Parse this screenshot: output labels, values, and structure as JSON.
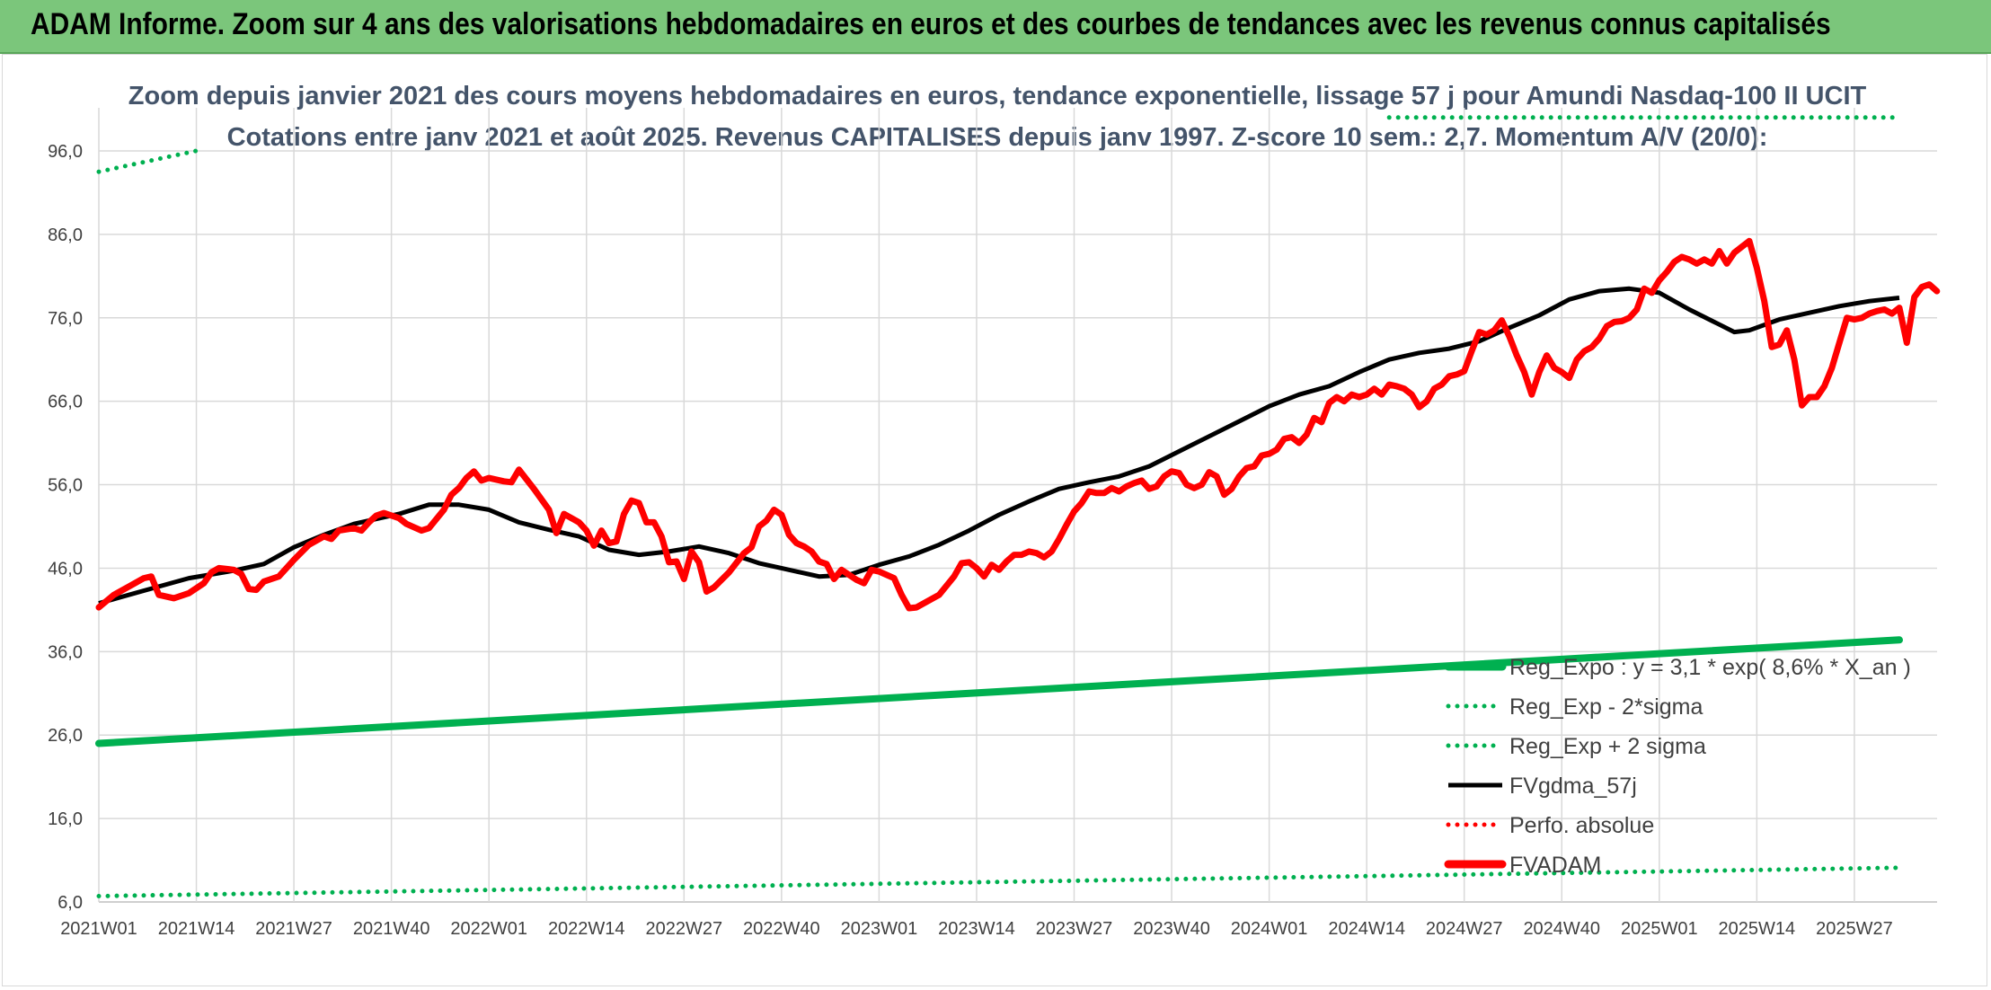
{
  "banner": {
    "title": "ADAM Informe. Zoom sur 4 ans des valorisations hebdomadaires en euros et des courbes de tendances avec les revenus connus capitalisés"
  },
  "colors": {
    "banner_bg": "#7bc67b",
    "reg_green": "#00b050",
    "fvgdma": "#000000",
    "fvadam": "#ff0000",
    "perfo": "#ff0000",
    "grid": "#d9d9d9",
    "title_text": "#44546a"
  },
  "chart_data": {
    "type": "line",
    "title": "Zoom depuis janvier 2021 des cours moyens hebdomadaires en euros, tendance exponentielle, lissage 57 j pour Amundi Nasdaq-100 II UCIT",
    "subtitle": "Cotations entre janv 2021 et août 2025. Revenus CAPITALISES depuis janv 1997. Z-score 10 sem.: 2,7. Momentum A/V (20/0):",
    "x_categories": [
      "2021W01",
      "2021W14",
      "2021W27",
      "2021W40",
      "2022W01",
      "2022W14",
      "2022W27",
      "2022W40",
      "2023W01",
      "2023W14",
      "2023W27",
      "2023W40",
      "2024W01",
      "2024W14",
      "2024W27",
      "2024W40",
      "2025W01",
      "2025W14",
      "2025W27"
    ],
    "x_range_weeks": [
      0,
      240
    ],
    "y_ticks": [
      "6,0",
      "16,0",
      "26,0",
      "36,0",
      "46,0",
      "56,0",
      "66,0",
      "76,0",
      "86,0",
      "96,0"
    ],
    "ylim": [
      6,
      100
    ],
    "grid": true,
    "legend_position": "bottom-right",
    "series": [
      {
        "name": "Reg_Expo : y = 3,1 * exp( 8,6% *  X_an )",
        "style": "thick-solid",
        "color": "#00b050",
        "points": [
          [
            0,
            25.0
          ],
          [
            240,
            37.4
          ]
        ]
      },
      {
        "name": "Reg_Exp - 2*sigma",
        "style": "dotted",
        "color": "#00b050",
        "points": [
          [
            0,
            6.7
          ],
          [
            240,
            10.1
          ]
        ]
      },
      {
        "name": "Reg_Exp + 2 sigma",
        "style": "dotted",
        "color": "#00b050",
        "segments": [
          [
            [
              0,
              93.5
            ],
            [
              14,
              96.2
            ]
          ],
          [
            [
              172,
              100.0
            ],
            [
              240,
              100.0
            ]
          ]
        ]
      },
      {
        "name": "FVgdma_57j",
        "style": "solid",
        "color": "#000000",
        "points": [
          [
            0,
            41.8
          ],
          [
            6,
            43.3
          ],
          [
            12,
            44.8
          ],
          [
            18,
            45.7
          ],
          [
            22,
            46.5
          ],
          [
            26,
            48.5
          ],
          [
            30,
            50.0
          ],
          [
            34,
            51.3
          ],
          [
            40,
            52.5
          ],
          [
            44,
            53.6
          ],
          [
            48,
            53.6
          ],
          [
            52,
            53.0
          ],
          [
            56,
            51.5
          ],
          [
            60,
            50.6
          ],
          [
            64,
            49.8
          ],
          [
            68,
            48.2
          ],
          [
            72,
            47.6
          ],
          [
            76,
            48.0
          ],
          [
            80,
            48.6
          ],
          [
            84,
            47.8
          ],
          [
            88,
            46.6
          ],
          [
            92,
            45.8
          ],
          [
            96,
            45.0
          ],
          [
            100,
            45.2
          ],
          [
            104,
            46.4
          ],
          [
            108,
            47.4
          ],
          [
            112,
            48.8
          ],
          [
            116,
            50.5
          ],
          [
            120,
            52.4
          ],
          [
            124,
            54.0
          ],
          [
            128,
            55.5
          ],
          [
            132,
            56.3
          ],
          [
            136,
            57.0
          ],
          [
            140,
            58.2
          ],
          [
            144,
            60.0
          ],
          [
            148,
            61.8
          ],
          [
            152,
            63.6
          ],
          [
            156,
            65.4
          ],
          [
            160,
            66.8
          ],
          [
            164,
            67.8
          ],
          [
            168,
            69.5
          ],
          [
            172,
            71.0
          ],
          [
            176,
            71.8
          ],
          [
            180,
            72.3
          ],
          [
            184,
            73.2
          ],
          [
            188,
            74.8
          ],
          [
            192,
            76.3
          ],
          [
            196,
            78.2
          ],
          [
            200,
            79.2
          ],
          [
            204,
            79.5
          ],
          [
            208,
            79.0
          ],
          [
            212,
            77.0
          ],
          [
            216,
            75.2
          ],
          [
            218,
            74.3
          ],
          [
            220,
            74.5
          ],
          [
            224,
            75.8
          ],
          [
            228,
            76.6
          ],
          [
            232,
            77.4
          ],
          [
            236,
            78.0
          ],
          [
            240,
            78.4
          ]
        ]
      },
      {
        "name": "Perfo. absolue",
        "style": "dotted",
        "color": "#ff0000",
        "points": []
      },
      {
        "name": "FVADAM",
        "style": "thick-solid",
        "color": "#ff0000",
        "points": [
          [
            0,
            41.3
          ],
          [
            2,
            42.8
          ],
          [
            4,
            43.8
          ],
          [
            6,
            44.8
          ],
          [
            7,
            45.0
          ],
          [
            8,
            42.8
          ],
          [
            10,
            42.4
          ],
          [
            12,
            43.0
          ],
          [
            14,
            44.2
          ],
          [
            15,
            45.5
          ],
          [
            16,
            46.0
          ],
          [
            18,
            45.8
          ],
          [
            19,
            45.3
          ],
          [
            20,
            43.5
          ],
          [
            21,
            43.4
          ],
          [
            22,
            44.4
          ],
          [
            24,
            45.0
          ],
          [
            26,
            47.0
          ],
          [
            28,
            48.8
          ],
          [
            30,
            49.8
          ],
          [
            31,
            49.5
          ],
          [
            32,
            50.5
          ],
          [
            34,
            50.8
          ],
          [
            35,
            50.5
          ],
          [
            36,
            51.5
          ],
          [
            37,
            52.3
          ],
          [
            38,
            52.6
          ],
          [
            40,
            52.0
          ],
          [
            41,
            51.3
          ],
          [
            43,
            50.5
          ],
          [
            44,
            50.8
          ],
          [
            46,
            53.0
          ],
          [
            47,
            54.8
          ],
          [
            48,
            55.6
          ],
          [
            49,
            56.8
          ],
          [
            50,
            57.6
          ],
          [
            51,
            56.5
          ],
          [
            52,
            56.8
          ],
          [
            54,
            56.4
          ],
          [
            55,
            56.3
          ],
          [
            56,
            57.8
          ],
          [
            58,
            55.5
          ],
          [
            60,
            53.0
          ],
          [
            61,
            50.2
          ],
          [
            62,
            52.5
          ],
          [
            64,
            51.5
          ],
          [
            65,
            50.5
          ],
          [
            66,
            48.7
          ],
          [
            67,
            50.5
          ],
          [
            68,
            49.0
          ],
          [
            69,
            49.2
          ],
          [
            70,
            52.5
          ],
          [
            71,
            54.1
          ],
          [
            72,
            53.8
          ],
          [
            73,
            51.5
          ],
          [
            74,
            51.5
          ],
          [
            75,
            49.8
          ],
          [
            76,
            46.7
          ],
          [
            77,
            46.8
          ],
          [
            78,
            44.7
          ],
          [
            79,
            48.0
          ],
          [
            80,
            46.7
          ],
          [
            81,
            43.2
          ],
          [
            82,
            43.7
          ],
          [
            84,
            45.5
          ],
          [
            86,
            47.8
          ],
          [
            87,
            48.5
          ],
          [
            88,
            51.0
          ],
          [
            89,
            51.7
          ],
          [
            90,
            53.0
          ],
          [
            91,
            52.4
          ],
          [
            92,
            50.0
          ],
          [
            93,
            49.0
          ],
          [
            94,
            48.6
          ],
          [
            95,
            48.0
          ],
          [
            96,
            46.8
          ],
          [
            97,
            46.5
          ],
          [
            98,
            44.7
          ],
          [
            99,
            45.8
          ],
          [
            100,
            45.2
          ],
          [
            101,
            44.6
          ],
          [
            102,
            44.2
          ],
          [
            103,
            45.8
          ],
          [
            104,
            45.6
          ],
          [
            106,
            44.8
          ],
          [
            107,
            42.8
          ],
          [
            108,
            41.2
          ],
          [
            109,
            41.3
          ],
          [
            111,
            42.3
          ],
          [
            112,
            42.8
          ],
          [
            114,
            45.0
          ],
          [
            115,
            46.6
          ],
          [
            116,
            46.7
          ],
          [
            117,
            46.0
          ],
          [
            118,
            45.0
          ],
          [
            119,
            46.4
          ],
          [
            120,
            45.8
          ],
          [
            121,
            46.8
          ],
          [
            122,
            47.6
          ],
          [
            123,
            47.6
          ],
          [
            124,
            48.0
          ],
          [
            125,
            47.8
          ],
          [
            126,
            47.3
          ],
          [
            127,
            48.0
          ],
          [
            128,
            49.5
          ],
          [
            129,
            51.2
          ],
          [
            130,
            52.8
          ],
          [
            131,
            53.8
          ],
          [
            132,
            55.2
          ],
          [
            133,
            55.0
          ],
          [
            134,
            55.0
          ],
          [
            135,
            55.6
          ],
          [
            136,
            55.2
          ],
          [
            137,
            55.8
          ],
          [
            138,
            56.2
          ],
          [
            139,
            56.5
          ],
          [
            140,
            55.5
          ],
          [
            141,
            55.8
          ],
          [
            142,
            57.0
          ],
          [
            143,
            57.6
          ],
          [
            144,
            57.4
          ],
          [
            145,
            56.0
          ],
          [
            146,
            55.6
          ],
          [
            147,
            56.0
          ],
          [
            148,
            57.5
          ],
          [
            149,
            57.0
          ],
          [
            150,
            54.8
          ],
          [
            151,
            55.5
          ],
          [
            152,
            57.0
          ],
          [
            153,
            58.0
          ],
          [
            154,
            58.2
          ],
          [
            155,
            59.5
          ],
          [
            156,
            59.7
          ],
          [
            157,
            60.2
          ],
          [
            158,
            61.5
          ],
          [
            159,
            61.7
          ],
          [
            160,
            61.0
          ],
          [
            161,
            62.0
          ],
          [
            162,
            64.0
          ],
          [
            163,
            63.5
          ],
          [
            164,
            65.8
          ],
          [
            165,
            66.5
          ],
          [
            166,
            66.0
          ],
          [
            167,
            66.8
          ],
          [
            168,
            66.5
          ],
          [
            169,
            66.8
          ],
          [
            170,
            67.5
          ],
          [
            171,
            66.8
          ],
          [
            172,
            68.0
          ],
          [
            173,
            67.8
          ],
          [
            174,
            67.5
          ],
          [
            175,
            66.8
          ],
          [
            176,
            65.3
          ],
          [
            177,
            66.0
          ],
          [
            178,
            67.5
          ],
          [
            179,
            68.0
          ],
          [
            180,
            69.0
          ],
          [
            181,
            69.2
          ],
          [
            182,
            69.6
          ],
          [
            183,
            72.0
          ],
          [
            184,
            74.3
          ],
          [
            185,
            74.0
          ],
          [
            186,
            74.5
          ],
          [
            187,
            75.7
          ],
          [
            188,
            73.8
          ],
          [
            189,
            71.5
          ],
          [
            190,
            69.5
          ],
          [
            191,
            66.8
          ],
          [
            192,
            69.5
          ],
          [
            193,
            71.5
          ],
          [
            194,
            70.0
          ],
          [
            195,
            69.5
          ],
          [
            196,
            68.8
          ],
          [
            197,
            71.0
          ],
          [
            198,
            72.0
          ],
          [
            199,
            72.5
          ],
          [
            200,
            73.5
          ],
          [
            201,
            75.0
          ],
          [
            202,
            75.5
          ],
          [
            203,
            75.6
          ],
          [
            204,
            76.0
          ],
          [
            205,
            77.0
          ],
          [
            206,
            79.5
          ],
          [
            207,
            79.0
          ],
          [
            208,
            80.5
          ],
          [
            209,
            81.5
          ],
          [
            210,
            82.7
          ],
          [
            211,
            83.3
          ],
          [
            212,
            83.0
          ],
          [
            213,
            82.5
          ],
          [
            214,
            83.0
          ],
          [
            215,
            82.5
          ],
          [
            216,
            84.0
          ],
          [
            217,
            82.5
          ],
          [
            218,
            83.8
          ],
          [
            219,
            84.5
          ],
          [
            220,
            85.2
          ],
          [
            221,
            82.0
          ],
          [
            222,
            78.0
          ],
          [
            223,
            72.5
          ],
          [
            224,
            72.8
          ],
          [
            225,
            74.5
          ],
          [
            226,
            71.0
          ],
          [
            227,
            65.5
          ],
          [
            228,
            66.5
          ],
          [
            229,
            66.5
          ],
          [
            230,
            67.8
          ],
          [
            231,
            70.0
          ],
          [
            232,
            73.0
          ],
          [
            233,
            76.0
          ],
          [
            234,
            75.8
          ],
          [
            235,
            76.0
          ],
          [
            236,
            76.5
          ],
          [
            237,
            76.8
          ],
          [
            238,
            77.0
          ],
          [
            239,
            76.5
          ],
          [
            240,
            77.2
          ],
          [
            241,
            73.0
          ],
          [
            242,
            78.5
          ],
          [
            243,
            79.7
          ],
          [
            244,
            80.0
          ],
          [
            245,
            79.2
          ]
        ]
      }
    ]
  }
}
